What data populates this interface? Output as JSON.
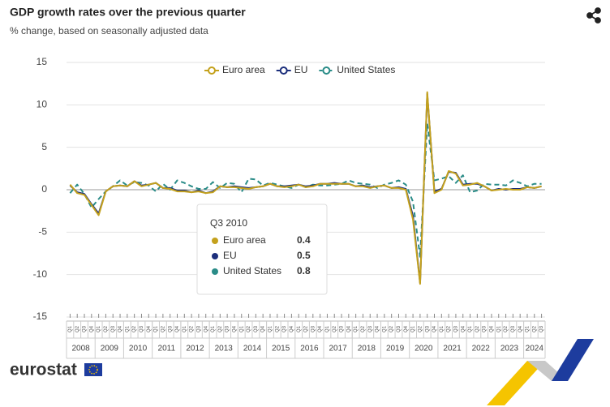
{
  "chart_data": {
    "type": "line",
    "title": "GDP growth rates over the previous quarter",
    "subtitle": "% change, based on seasonally adjusted data",
    "categories": [
      "Q1",
      "Q2",
      "Q3",
      "Q4",
      "Q1",
      "Q2",
      "Q3",
      "Q4",
      "Q1",
      "Q2",
      "Q3",
      "Q4",
      "Q1",
      "Q2",
      "Q3",
      "Q4",
      "Q1",
      "Q2",
      "Q3",
      "Q4",
      "Q1",
      "Q2",
      "Q3",
      "Q4",
      "Q1",
      "Q2",
      "Q3",
      "Q4",
      "Q1",
      "Q2",
      "Q3",
      "Q4",
      "Q1",
      "Q2",
      "Q3",
      "Q4",
      "Q1",
      "Q2",
      "Q3",
      "Q4",
      "Q1",
      "Q2",
      "Q3",
      "Q4",
      "Q1",
      "Q2",
      "Q3",
      "Q4",
      "Q1",
      "Q2",
      "Q3",
      "Q4",
      "Q1",
      "Q2",
      "Q3",
      "Q4",
      "Q1",
      "Q2",
      "Q3",
      "Q4",
      "Q1",
      "Q2",
      "Q3",
      "Q4",
      "Q1",
      "Q2",
      "Q3"
    ],
    "years": [
      "2008",
      "2009",
      "2010",
      "2011",
      "2012",
      "2013",
      "2014",
      "2015",
      "2016",
      "2017",
      "2018",
      "2019",
      "2020",
      "2021",
      "2022",
      "2023",
      "2024"
    ],
    "series": [
      {
        "name": "Euro area",
        "color": "#c4a11c",
        "values": [
          0.6,
          -0.4,
          -0.6,
          -1.8,
          -3.0,
          -0.2,
          0.4,
          0.5,
          0.4,
          1.0,
          0.4,
          0.6,
          0.8,
          0.2,
          0.1,
          -0.2,
          -0.2,
          -0.3,
          -0.2,
          -0.4,
          -0.3,
          0.4,
          0.3,
          0.3,
          0.2,
          0.1,
          0.3,
          0.4,
          0.7,
          0.4,
          0.3,
          0.4,
          0.6,
          0.3,
          0.4,
          0.7,
          0.7,
          0.7,
          0.7,
          0.7,
          0.4,
          0.4,
          0.2,
          0.4,
          0.5,
          0.2,
          0.2,
          0.0,
          -3.5,
          -11.1,
          11.5,
          -0.4,
          0.0,
          2.2,
          1.9,
          0.5,
          0.6,
          0.8,
          0.4,
          -0.1,
          0.0,
          0.1,
          0.0,
          0.0,
          0.3,
          0.2,
          0.4
        ]
      },
      {
        "name": "EU",
        "color": "#1c2f7c",
        "values": [
          0.5,
          -0.3,
          -0.5,
          -1.7,
          -2.8,
          -0.2,
          0.4,
          0.5,
          0.4,
          1.0,
          0.5,
          0.6,
          0.8,
          0.2,
          0.2,
          -0.1,
          -0.1,
          -0.3,
          -0.1,
          -0.4,
          -0.2,
          0.4,
          0.3,
          0.4,
          0.3,
          0.2,
          0.3,
          0.4,
          0.7,
          0.4,
          0.4,
          0.5,
          0.6,
          0.4,
          0.5,
          0.7,
          0.7,
          0.8,
          0.7,
          0.7,
          0.4,
          0.5,
          0.3,
          0.4,
          0.5,
          0.2,
          0.3,
          0.1,
          -3.1,
          -11.0,
          11.3,
          -0.2,
          0.1,
          2.1,
          2.0,
          0.6,
          0.7,
          0.7,
          0.4,
          -0.1,
          0.1,
          0.0,
          0.1,
          0.1,
          0.3,
          0.2,
          0.4
        ]
      },
      {
        "name": "United States",
        "color": "#2a8c88",
        "dashed": true,
        "values": [
          -0.4,
          0.6,
          -0.5,
          -2.1,
          -1.1,
          -0.2,
          0.4,
          1.1,
          0.5,
          0.9,
          0.8,
          0.5,
          -0.2,
          0.7,
          0.0,
          1.1,
          0.8,
          0.4,
          0.1,
          0.1,
          0.9,
          0.2,
          0.8,
          0.7,
          -0.3,
          1.3,
          1.2,
          0.5,
          0.8,
          0.6,
          0.4,
          0.2,
          0.6,
          0.3,
          0.6,
          0.5,
          0.5,
          0.6,
          0.7,
          1.1,
          0.8,
          0.7,
          0.6,
          0.2,
          0.6,
          0.8,
          1.1,
          0.6,
          -1.4,
          -7.9,
          7.8,
          1.1,
          1.3,
          1.6,
          0.8,
          1.7,
          -0.3,
          -0.1,
          0.7,
          0.6,
          0.6,
          0.5,
          1.1,
          0.8,
          0.4,
          0.7,
          0.7
        ]
      }
    ],
    "ylim": [
      -15,
      15
    ],
    "yticks": [
      -15,
      -10,
      -5,
      0,
      5,
      10,
      15
    ],
    "grid": true,
    "tooltip": {
      "title": "Q3 2010",
      "rows": [
        {
          "name": "Euro area",
          "value": 0.4
        },
        {
          "name": "EU",
          "value": 0.5
        },
        {
          "name": "United States",
          "value": 0.8
        }
      ]
    },
    "logo": "eurostat"
  }
}
